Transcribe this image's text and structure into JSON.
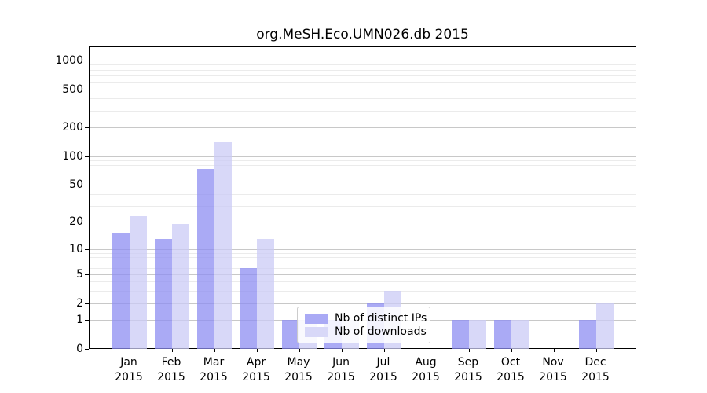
{
  "chart_data": {
    "type": "bar",
    "title": "org.MeSH.Eco.UMN026.db 2015",
    "categories": [
      "Jan 2015",
      "Feb 2015",
      "Mar 2015",
      "Apr 2015",
      "May 2015",
      "Jun 2015",
      "Jul 2015",
      "Aug 2015",
      "Sep 2015",
      "Oct 2015",
      "Nov 2015",
      "Dec 2015"
    ],
    "series": [
      {
        "name": "Nb of distinct IPs",
        "color": "#aaaaf5",
        "values": [
          15,
          13,
          74,
          6,
          1,
          1,
          2,
          0,
          1,
          1,
          0,
          1
        ]
      },
      {
        "name": "Nb of downloads",
        "color": "#d8d8f8",
        "values": [
          23,
          19,
          140,
          13,
          1,
          1,
          3,
          0,
          1,
          1,
          0,
          2
        ]
      }
    ],
    "xlabel": "",
    "ylabel": "",
    "yscale": "log1p",
    "y_ticks": [
      0,
      1,
      2,
      5,
      10,
      20,
      50,
      100,
      200,
      500,
      1000
    ],
    "y_minor_ticks": [
      3,
      4,
      6,
      7,
      8,
      9,
      30,
      40,
      60,
      70,
      80,
      90,
      300,
      400,
      600,
      700,
      800,
      900
    ],
    "ylim": [
      0,
      1000
    ],
    "grid": "horizontal major and minor gridlines",
    "legend_position": "inside plot, lower center-left"
  },
  "colors": {
    "background": "#ffffff",
    "axis": "#000000",
    "grid_major": "#c8c8c8",
    "grid_minor": "#ebebeb",
    "legend_border": "#cccccc",
    "text": "#000000"
  }
}
